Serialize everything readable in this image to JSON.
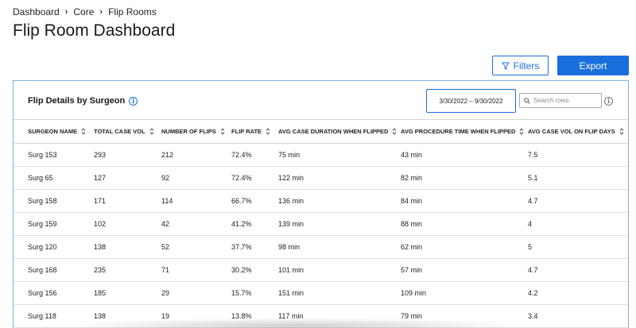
{
  "breadcrumb": {
    "items": [
      "Dashboard",
      "Core",
      "Flip Rooms"
    ]
  },
  "page": {
    "title": "Flip Room Dashboard"
  },
  "toolbar": {
    "filters_label": "Filters",
    "export_label": "Export"
  },
  "panel": {
    "title": "Flip Details by Surgeon",
    "date_range": "3/30/2022 – 9/30/2022",
    "search_placeholder": "Search rows"
  },
  "table": {
    "columns": [
      "SURGEON NAME",
      "TOTAL CASE VOL",
      "NUMBER OF FLIPS",
      "FLIP RATE",
      "AVG CASE DURATION WHEN FLIPPED",
      "AVG PROCEDURE TIME WHEN FLIPPED",
      "AVG CASE VOL ON FLIP DAYS"
    ],
    "rows": [
      [
        "Surg 153",
        "293",
        "212",
        "72.4%",
        "75 min",
        "43 min",
        "7.5"
      ],
      [
        "Surg 65",
        "127",
        "92",
        "72.4%",
        "122 min",
        "82 min",
        "5.1"
      ],
      [
        "Surg 158",
        "171",
        "114",
        "66.7%",
        "136 min",
        "84 min",
        "4.7"
      ],
      [
        "Surg 159",
        "102",
        "42",
        "41.2%",
        "139 min",
        "88 min",
        "4"
      ],
      [
        "Surg 120",
        "138",
        "52",
        "37.7%",
        "98 min",
        "62 min",
        "5"
      ],
      [
        "Surg 168",
        "235",
        "71",
        "30.2%",
        "101 min",
        "57 min",
        "4.7"
      ],
      [
        "Surg 156",
        "185",
        "29",
        "15.7%",
        "151 min",
        "109 min",
        "4.2"
      ],
      [
        "Surg 118",
        "138",
        "19",
        "13.8%",
        "117 min",
        "79 min",
        "3.4"
      ]
    ]
  },
  "colors": {
    "accent": "#1a6fdc",
    "panel_border": "#7fb0e9"
  },
  "icons": {
    "filter": "filter-icon",
    "info": "info-icon",
    "search": "search-icon",
    "sort": "sort-icon"
  }
}
